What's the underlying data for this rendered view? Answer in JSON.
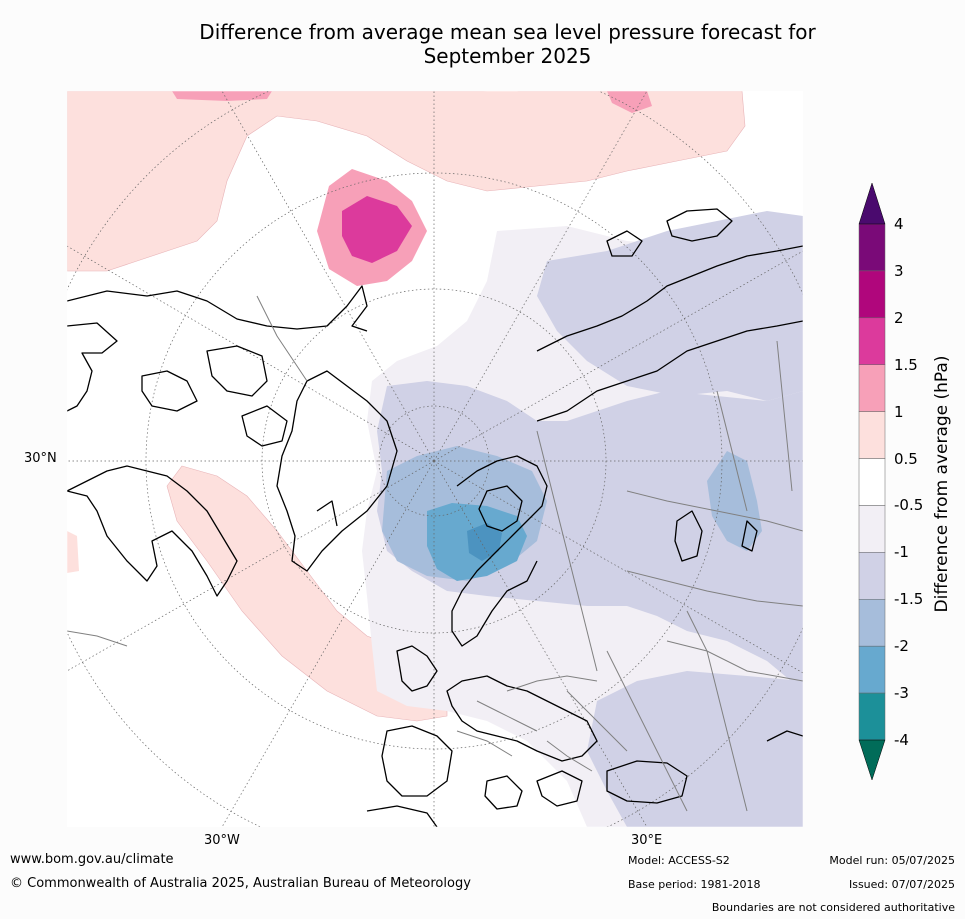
{
  "title_line1": "Difference from average mean sea level pressure forecast for",
  "title_line2": "September 2025",
  "map": {
    "lat_label": "30°N",
    "lon_labels": [
      "30°W",
      "30°E"
    ]
  },
  "colorbar": {
    "label": "Difference from average (hPa)",
    "ticks": [
      "4",
      "3",
      "2",
      "1.5",
      "1",
      "0.5",
      "-0.5",
      "-1",
      "-1.5",
      "-2",
      "-3",
      "-4"
    ],
    "levels": [
      {
        "range": "3 to 4",
        "color": "#7a0a78"
      },
      {
        "range": "2 to 3",
        "color": "#b0067c"
      },
      {
        "range": "1.5 to 2",
        "color": "#dc3a9c"
      },
      {
        "range": "1 to 1.5",
        "color": "#f7a0b8"
      },
      {
        "range": "0.5 to 1",
        "color": "#fde0dd"
      },
      {
        "range": "-0.5 to 0.5",
        "color": "#ffffff"
      },
      {
        "range": "-1 to -0.5",
        "color": "#f2eff5"
      },
      {
        "range": "-1.5 to -1",
        "color": "#d0d1e6"
      },
      {
        "range": "-2 to -1.5",
        "color": "#a6bddb"
      },
      {
        "range": "-3 to -2",
        "color": "#67a9cf"
      },
      {
        "range": "-4 to -3",
        "color": "#1c9099"
      }
    ],
    "over_color": "#4a0a6e",
    "under_color": "#016c59"
  },
  "footer": {
    "website": "www.bom.gov.au/climate",
    "copyright": "© Commonwealth of Australia 2025, Australian Bureau of Meteorology",
    "model": "Model: ACCESS-S2",
    "base_period": "Base period: 1981-2018",
    "model_run": "Model run: 05/07/2025",
    "issued": "Issued: 07/07/2025",
    "disclaimer": "Boundaries are not considered authoritative"
  }
}
